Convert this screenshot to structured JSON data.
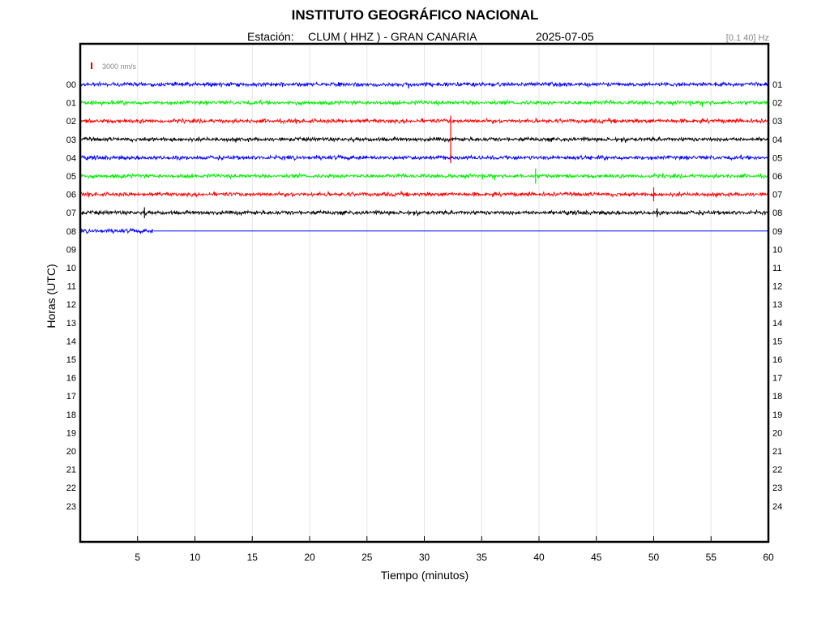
{
  "header": {
    "title": "INSTITUTO GEOGRÁFICO NACIONAL",
    "station_prefix": "Estación:",
    "station": "CLUM ( HHZ ) - GRAN CANARIA",
    "date": "2025-07-05",
    "filter": "[0.1 40] Hz"
  },
  "chart_data": {
    "type": "line",
    "title": "INSTITUTO GEOGRÁFICO NACIONAL",
    "xlabel": "Tiempo (minutos)",
    "ylabel": "Horas (UTC)",
    "xlim": [
      0,
      60
    ],
    "x_ticks": [
      5,
      10,
      15,
      20,
      25,
      30,
      35,
      40,
      45,
      50,
      55,
      60
    ],
    "left_labels": [
      "00",
      "01",
      "02",
      "03",
      "04",
      "05",
      "06",
      "07",
      "08",
      "09",
      "10",
      "11",
      "12",
      "13",
      "14",
      "15",
      "16",
      "17",
      "18",
      "19",
      "20",
      "21",
      "22",
      "23"
    ],
    "right_labels": [
      "01",
      "02",
      "03",
      "04",
      "05",
      "06",
      "07",
      "08",
      "09",
      "10",
      "11",
      "12",
      "13",
      "14",
      "15",
      "16",
      "17",
      "18",
      "19",
      "20",
      "21",
      "22",
      "23",
      "24"
    ],
    "grid": true,
    "scale_bar": {
      "label": "3000 nm/s",
      "color": "#e00000"
    },
    "trace_colors": [
      "#0000ff",
      "#00ee00",
      "#ff0000",
      "#000000"
    ],
    "traces": [
      {
        "hour": "00",
        "color": "#0000ff",
        "end_minute": 60,
        "amplitude_nm_s": 1300
      },
      {
        "hour": "01",
        "color": "#00ee00",
        "end_minute": 60,
        "amplitude_nm_s": 1300
      },
      {
        "hour": "02",
        "color": "#ff0000",
        "end_minute": 60,
        "amplitude_nm_s": 1300
      },
      {
        "hour": "03",
        "color": "#000000",
        "end_minute": 60,
        "amplitude_nm_s": 1300
      },
      {
        "hour": "04",
        "color": "#0000ff",
        "end_minute": 60,
        "amplitude_nm_s": 1300
      },
      {
        "hour": "05",
        "color": "#00ee00",
        "end_minute": 60,
        "amplitude_nm_s": 1300
      },
      {
        "hour": "06",
        "color": "#ff0000",
        "end_minute": 60,
        "amplitude_nm_s": 1300
      },
      {
        "hour": "07",
        "color": "#000000",
        "end_minute": 60,
        "amplitude_nm_s": 1300
      },
      {
        "hour": "08",
        "color": "#0000ff",
        "end_minute": 6.4,
        "amplitude_nm_s": 1300
      }
    ],
    "events": [
      {
        "hour": "03",
        "minute": 32.3,
        "amplitude_nm_s": 11000,
        "color": "#ff0000"
      },
      {
        "hour": "05",
        "minute": 39.7,
        "amplitude_nm_s": 3500,
        "color": "#00ee00"
      },
      {
        "hour": "06",
        "minute": 50.0,
        "amplitude_nm_s": 3200,
        "color": "#ff0000"
      },
      {
        "hour": "07",
        "minute": 5.6,
        "amplitude_nm_s": 2500,
        "color": "#000000"
      },
      {
        "hour": "07",
        "minute": 50.3,
        "amplitude_nm_s": 2000,
        "color": "#000000"
      }
    ]
  }
}
